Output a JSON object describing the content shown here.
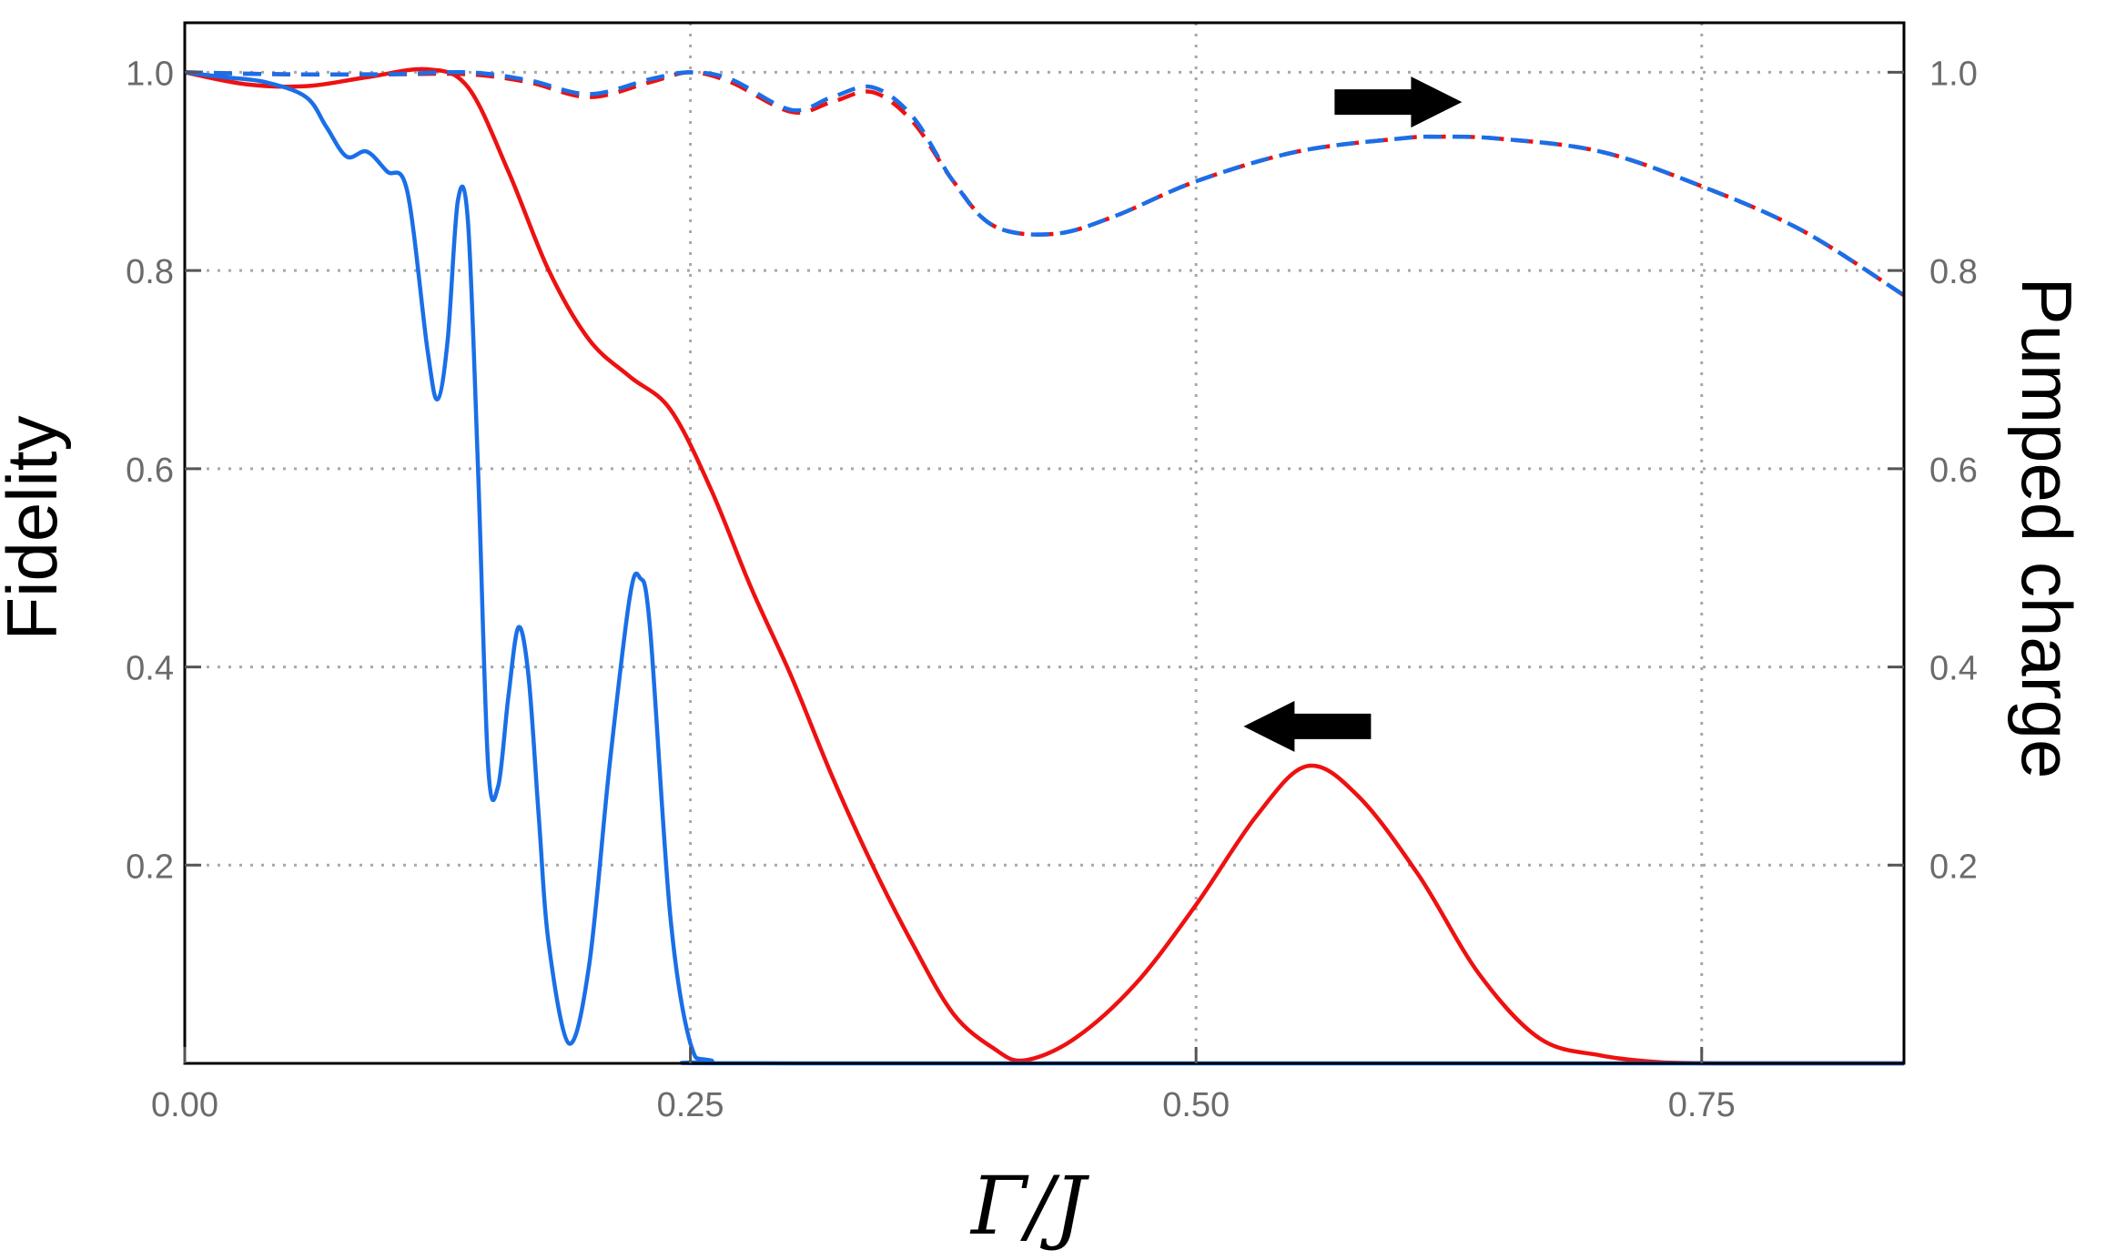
{
  "chart_data": {
    "type": "line",
    "xlabel": "Γ/J",
    "ylabel": "Fidelity",
    "y2label": "Pumped charge",
    "xlim": [
      0,
      0.85
    ],
    "ylim": [
      0,
      1.05
    ],
    "y2lim": [
      0,
      1.05
    ],
    "x_ticks": [
      0,
      0.25,
      0.5,
      0.75
    ],
    "x_tick_labels": [
      "0.00",
      "0.25",
      "0.50",
      "0.75"
    ],
    "y_ticks": [
      0.2,
      0.4,
      0.6,
      0.8,
      1.0
    ],
    "y_tick_labels": [
      "0.2",
      "0.4",
      "0.6",
      "0.8",
      "1.0"
    ],
    "y2_ticks": [
      0.2,
      0.4,
      0.6,
      0.8,
      1.0
    ],
    "y2_tick_labels": [
      "0.2",
      "0.4",
      "0.6",
      "0.8",
      "1.0"
    ],
    "grid": true,
    "colors": {
      "red": "#ee1111",
      "blue": "#1a6fe8",
      "grid": "#a8a8a8",
      "frame": "#000000",
      "arrow": "#000000"
    },
    "annotations": [
      {
        "type": "arrow",
        "direction": "right",
        "x": 0.6,
        "y": 0.97,
        "meaning": "dashed curves refer to right axis"
      },
      {
        "type": "arrow",
        "direction": "left",
        "x": 0.555,
        "y": 0.34,
        "meaning": "solid curves refer to left axis"
      }
    ],
    "series": [
      {
        "axis": "left",
        "style": "solid",
        "color": "#ee1111",
        "x": [
          0,
          0.03,
          0.06,
          0.09,
          0.12,
          0.14,
          0.16,
          0.18,
          0.2,
          0.22,
          0.24,
          0.26,
          0.28,
          0.3,
          0.32,
          0.34,
          0.36,
          0.38,
          0.4,
          0.415,
          0.44,
          0.47,
          0.5,
          0.53,
          0.555,
          0.58,
          0.61,
          0.64,
          0.67,
          0.7,
          0.73,
          0.76,
          0.8,
          0.85
        ],
        "y": [
          1.0,
          0.988,
          0.986,
          0.995,
          1.003,
          0.985,
          0.9,
          0.8,
          0.73,
          0.693,
          0.66,
          0.58,
          0.48,
          0.39,
          0.29,
          0.2,
          0.12,
          0.05,
          0.015,
          0.003,
          0.025,
          0.08,
          0.16,
          0.25,
          0.3,
          0.27,
          0.19,
          0.09,
          0.025,
          0.008,
          0.001,
          0.0,
          0.0,
          0.0
        ]
      },
      {
        "axis": "left",
        "style": "solid",
        "color": "#1a6fe8",
        "x": [
          0,
          0.02,
          0.04,
          0.06,
          0.07,
          0.08,
          0.09,
          0.1,
          0.11,
          0.12,
          0.125,
          0.13,
          0.135,
          0.14,
          0.145,
          0.15,
          0.155,
          0.16,
          0.165,
          0.17,
          0.175,
          0.18,
          0.19,
          0.2,
          0.21,
          0.22,
          0.225,
          0.23,
          0.24,
          0.25,
          0.26,
          0.3,
          0.85
        ],
        "y": [
          1.0,
          0.995,
          0.99,
          0.975,
          0.945,
          0.915,
          0.92,
          0.9,
          0.88,
          0.72,
          0.67,
          0.73,
          0.87,
          0.85,
          0.6,
          0.3,
          0.28,
          0.37,
          0.44,
          0.39,
          0.25,
          0.12,
          0.02,
          0.1,
          0.3,
          0.47,
          0.49,
          0.44,
          0.15,
          0.02,
          0.003,
          0.0,
          0.0
        ]
      },
      {
        "axis": "right",
        "style": "dashed",
        "color": "#ee1111",
        "x": [
          0,
          0.05,
          0.1,
          0.14,
          0.17,
          0.2,
          0.23,
          0.25,
          0.27,
          0.3,
          0.32,
          0.34,
          0.36,
          0.38,
          0.4,
          0.43,
          0.46,
          0.5,
          0.55,
          0.6,
          0.62,
          0.65,
          0.7,
          0.75,
          0.8,
          0.85
        ],
        "y": [
          1.0,
          0.998,
          0.998,
          0.998,
          0.99,
          0.975,
          0.99,
          1.0,
          0.99,
          0.96,
          0.97,
          0.98,
          0.95,
          0.89,
          0.845,
          0.837,
          0.855,
          0.89,
          0.92,
          0.933,
          0.935,
          0.933,
          0.92,
          0.885,
          0.84,
          0.775
        ]
      },
      {
        "axis": "right",
        "style": "dashed",
        "color": "#1a6fe8",
        "x": [
          0,
          0.05,
          0.1,
          0.14,
          0.17,
          0.2,
          0.23,
          0.25,
          0.27,
          0.3,
          0.32,
          0.34,
          0.36,
          0.38,
          0.4,
          0.43,
          0.46,
          0.5,
          0.55,
          0.6,
          0.62,
          0.65,
          0.7,
          0.75,
          0.8,
          0.85
        ],
        "y": [
          1.0,
          0.998,
          0.998,
          1.0,
          0.992,
          0.978,
          0.993,
          1.0,
          0.993,
          0.962,
          0.975,
          0.985,
          0.955,
          0.89,
          0.845,
          0.837,
          0.855,
          0.89,
          0.92,
          0.933,
          0.935,
          0.933,
          0.92,
          0.885,
          0.84,
          0.775
        ]
      }
    ]
  }
}
